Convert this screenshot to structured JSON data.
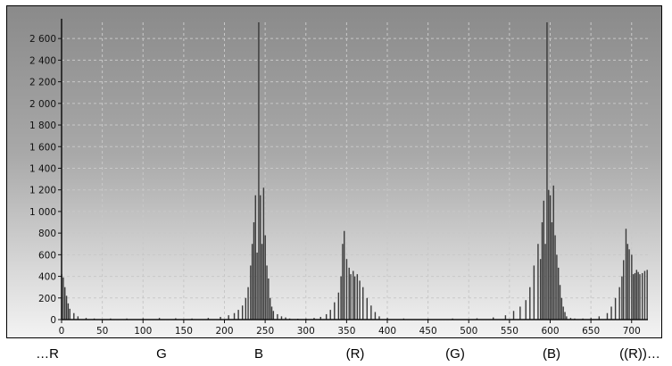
{
  "chart_data": {
    "type": "bar",
    "title": "",
    "xlabel": "",
    "ylabel": "",
    "xlim": [
      0,
      720
    ],
    "ylim": [
      0,
      2750
    ],
    "x_ticks": [
      0,
      50,
      100,
      150,
      200,
      250,
      300,
      350,
      400,
      450,
      500,
      550,
      600,
      650,
      700
    ],
    "y_ticks": [
      0,
      200,
      400,
      600,
      800,
      1000,
      1200,
      1400,
      1600,
      1800,
      2000,
      2200,
      2400,
      2600
    ],
    "y_tick_labels": [
      "0",
      "200",
      "400",
      "600",
      "800",
      "1 000",
      "1 200",
      "1 400",
      "1 600",
      "1 800",
      "2 000",
      "2 200",
      "2 400",
      "2 600"
    ],
    "grid": true,
    "bar_color": "#3a3a3a",
    "series": [
      {
        "x": [
          0,
          2,
          4,
          6,
          8,
          10,
          15,
          20,
          30,
          40,
          60,
          80,
          100,
          120,
          140,
          160,
          180,
          195,
          205,
          212,
          217,
          222,
          226,
          229,
          232,
          234,
          236,
          238,
          240,
          242,
          244,
          246,
          248,
          250,
          252,
          254,
          256,
          258,
          260,
          265,
          270,
          275,
          280,
          290,
          300,
          310,
          318,
          325,
          330,
          335,
          340,
          343,
          345,
          347,
          350,
          353,
          355,
          358,
          360,
          363,
          366,
          370,
          375,
          380,
          385,
          390,
          400,
          420,
          450,
          480,
          510,
          530,
          545,
          555,
          563,
          570,
          575,
          580,
          585,
          588,
          590,
          592,
          594,
          596,
          598,
          600,
          602,
          604,
          606,
          608,
          610,
          612,
          614,
          616,
          618,
          620,
          625,
          630,
          640,
          650,
          660,
          670,
          675,
          680,
          685,
          688,
          690,
          693,
          695,
          697,
          700,
          702,
          704,
          706,
          708,
          710,
          713,
          716,
          719
        ],
        "y": [
          420,
          390,
          300,
          220,
          150,
          100,
          60,
          30,
          15,
          10,
          10,
          10,
          12,
          15,
          12,
          10,
          15,
          25,
          40,
          60,
          90,
          130,
          200,
          300,
          500,
          700,
          900,
          1150,
          620,
          2780,
          1150,
          700,
          1220,
          780,
          500,
          380,
          200,
          120,
          80,
          50,
          30,
          20,
          10,
          8,
          10,
          15,
          25,
          50,
          90,
          160,
          250,
          400,
          700,
          820,
          560,
          480,
          420,
          450,
          400,
          420,
          360,
          300,
          200,
          130,
          70,
          30,
          15,
          10,
          8,
          10,
          12,
          20,
          40,
          80,
          120,
          180,
          300,
          500,
          700,
          560,
          900,
          1100,
          700,
          2780,
          1200,
          1150,
          900,
          1240,
          780,
          600,
          480,
          320,
          200,
          120,
          70,
          30,
          15,
          10,
          10,
          15,
          30,
          60,
          120,
          200,
          300,
          400,
          550,
          840,
          700,
          650,
          600,
          420,
          430,
          460,
          440,
          420,
          430,
          450,
          460
        ]
      }
    ]
  },
  "channel_labels": [
    "…R",
    "G",
    "B",
    "(R)",
    "(G)",
    "(B)",
    "((R))…"
  ]
}
